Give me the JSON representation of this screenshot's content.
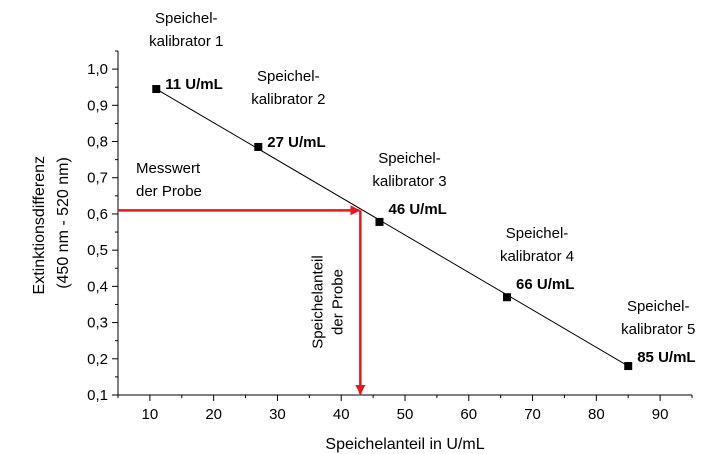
{
  "chart_data": {
    "type": "scatter",
    "title": "",
    "xlabel": "Speichelanteil in U/mL",
    "ylabel_lines": [
      "Extinktionsdifferenz",
      "(450 nm - 520 nm)"
    ],
    "xlim": [
      5,
      95
    ],
    "ylim": [
      0.1,
      1.05
    ],
    "xticks": [
      10,
      20,
      30,
      40,
      50,
      60,
      70,
      80,
      90
    ],
    "yticks": [
      0.1,
      0.2,
      0.3,
      0.4,
      0.5,
      0.6,
      0.7,
      0.8,
      0.9,
      1.0
    ],
    "xtick_labels": [
      "10",
      "20",
      "30",
      "40",
      "50",
      "60",
      "70",
      "80",
      "90"
    ],
    "ytick_labels": [
      "0,1",
      "0,2",
      "0,3",
      "0,4",
      "0,5",
      "0,6",
      "0,7",
      "0,8",
      "0,9",
      "1,0"
    ],
    "grid": false,
    "legend": "none",
    "series": [
      {
        "points": [
          {
            "x": 11,
            "y": 0.945
          },
          {
            "x": 27,
            "y": 0.785
          },
          {
            "x": 46,
            "y": 0.578
          },
          {
            "x": 66,
            "y": 0.37
          },
          {
            "x": 85,
            "y": 0.18
          }
        ]
      }
    ],
    "fit_line": {
      "x": [
        11,
        85
      ],
      "y": [
        0.945,
        0.18
      ]
    },
    "point_labels": [
      {
        "lines": [
          "Speichel-",
          "kalibrator 1"
        ],
        "value": "11 U/mL"
      },
      {
        "lines": [
          "Speichel-",
          "kalibrator 2"
        ],
        "value": "27 U/mL"
      },
      {
        "lines": [
          "Speichel-",
          "kalibrator 3"
        ],
        "value": "46 U/mL"
      },
      {
        "lines": [
          "Speichel-",
          "kalibrator 4"
        ],
        "value": "66 U/mL"
      },
      {
        "lines": [
          "Speichel-",
          "kalibrator 5"
        ],
        "value": "85 U/mL"
      }
    ],
    "sample": {
      "measured_y": 0.61,
      "result_x": 43,
      "measured_label_lines": [
        "Messwert",
        "der Probe"
      ],
      "result_label_lines": [
        "Speichelanteil",
        "der Probe"
      ],
      "color": "#e8171f"
    },
    "colors": {
      "axis": "#000000",
      "marker": "#000000",
      "line": "#000000"
    }
  }
}
